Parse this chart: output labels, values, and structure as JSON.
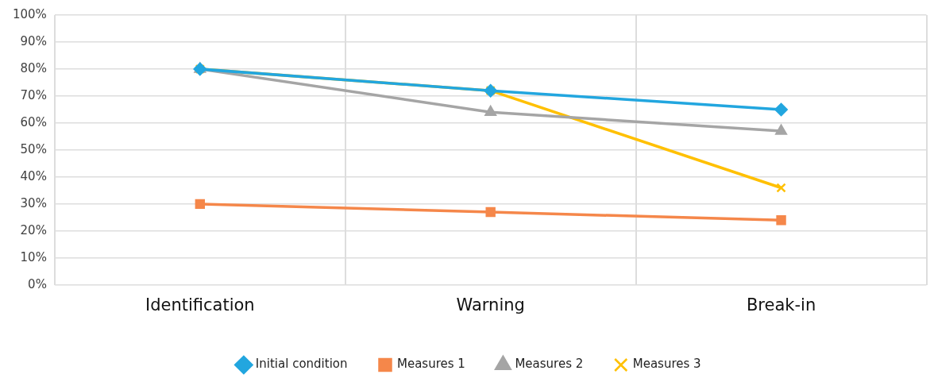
{
  "chart_data": {
    "type": "line",
    "categories": [
      "Identification",
      "Warning",
      "Break-in"
    ],
    "series": [
      {
        "name": "Initial condition",
        "color": "#22a6df",
        "marker": "diamond",
        "values": [
          80,
          72,
          65
        ]
      },
      {
        "name": "Measures 1",
        "color": "#f5874a",
        "marker": "square",
        "values": [
          30,
          27,
          24
        ]
      },
      {
        "name": "Measures 2",
        "color": "#a5a5a5",
        "marker": "triangle",
        "values": [
          80,
          64,
          57
        ]
      },
      {
        "name": "Measures 3",
        "color": "#ffc000",
        "marker": "cross",
        "values": [
          80,
          72,
          36
        ]
      }
    ],
    "ylim": [
      0,
      100
    ],
    "yticks": [
      {
        "value": 0,
        "label": "0%"
      },
      {
        "value": 10,
        "label": "10%"
      },
      {
        "value": 20,
        "label": "20%"
      },
      {
        "value": 30,
        "label": "30%"
      },
      {
        "value": 40,
        "label": "40%"
      },
      {
        "value": 50,
        "label": "50%"
      },
      {
        "value": 60,
        "label": "60%"
      },
      {
        "value": 70,
        "label": "70%"
      },
      {
        "value": 80,
        "label": "80%"
      },
      {
        "value": 90,
        "label": "90%"
      },
      {
        "value": 100,
        "label": "100%"
      }
    ],
    "grid": true,
    "legend": "bottom",
    "line_style": "solid"
  }
}
